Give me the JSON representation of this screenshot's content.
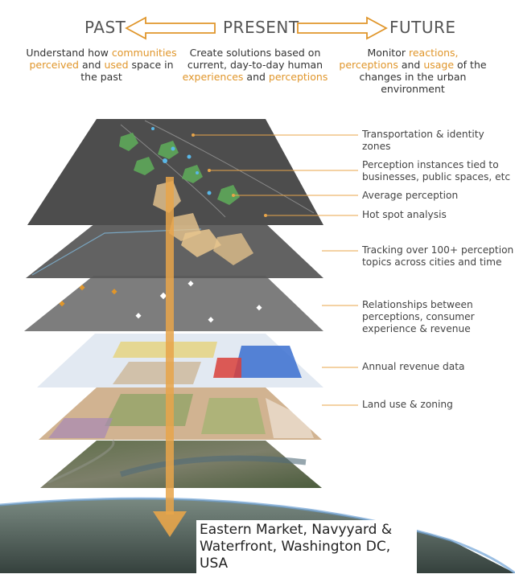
{
  "timeline": {
    "past": {
      "title": "PAST",
      "desc_parts": [
        "Understand how ",
        "communities perceived",
        " and ",
        "used",
        " space in the past"
      ]
    },
    "present": {
      "title": "PRESENT",
      "desc_parts": [
        "Create solutions based on current, day-to-day human ",
        "experiences",
        " and ",
        "perceptions"
      ]
    },
    "future": {
      "title": "FUTURE",
      "desc_parts": [
        "Monitor ",
        "reactions, perceptions",
        " and ",
        "usage",
        " of the changes in the urban environment"
      ]
    }
  },
  "layers": [
    {
      "callouts": [
        "Transportation & identity zones",
        "Perception instances tied to businesses, public spaces, etc",
        "Average perception",
        "Hot spot analysis"
      ]
    },
    {
      "callouts": [
        "Tracking over 100+ perception topics across cities and time"
      ]
    },
    {
      "callouts": [
        "Relationships between perceptions, consumer experience & revenue"
      ]
    },
    {
      "callouts": [
        "Annual revenue data"
      ]
    },
    {
      "callouts": [
        "Land use & zoning"
      ]
    }
  ],
  "location_label": "Eastern Market, Navyyard & Waterfront, Washington DC, USA",
  "colors": {
    "accent": "#e0962b",
    "heading": "#555555",
    "callout_line": "#e8a54a"
  }
}
